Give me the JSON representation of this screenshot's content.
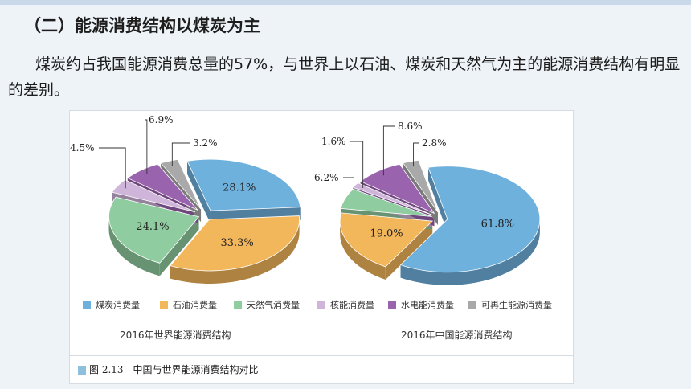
{
  "heading": "（二）能源消费结构以煤炭为主",
  "paragraph": "煤炭约占我国能源消费总量的57%，与世界上以石油、煤炭和天然气为主的能源消费结构有明显的差别。",
  "figure_caption": "图 2.13　中国与世界能源消费结构对比",
  "legend": [
    {
      "label": "煤炭消费量",
      "color": "#6fb1dd"
    },
    {
      "label": "石油消费量",
      "color": "#f2b65b"
    },
    {
      "label": "天然气消费量",
      "color": "#8fcc9f"
    },
    {
      "label": "核能消费量",
      "color": "#cfb5d9"
    },
    {
      "label": "水电能消费量",
      "color": "#9a63ae"
    },
    {
      "label": "可再生能源消费量",
      "color": "#a9a9a9"
    }
  ],
  "chart_data": [
    {
      "type": "pie",
      "title": "2016年世界能源消费结构",
      "categories": [
        "煤炭消费量",
        "石油消费量",
        "天然气消费量",
        "核能消费量",
        "水电能消费量",
        "可再生能源消费量"
      ],
      "values": [
        28.1,
        33.3,
        24.1,
        4.5,
        6.9,
        3.2
      ],
      "value_labels": [
        "28.1%",
        "33.3%",
        "24.1%",
        "4.5%",
        "6.9%",
        "3.2%"
      ],
      "exploded": true,
      "legend_position": "bottom"
    },
    {
      "type": "pie",
      "title": "2016年中国能源消费结构",
      "categories": [
        "煤炭消费量",
        "石油消费量",
        "天然气消费量",
        "核能消费量",
        "水电能消费量",
        "可再生能源消费量"
      ],
      "values": [
        61.8,
        19.0,
        6.2,
        1.6,
        8.6,
        2.8
      ],
      "value_labels": [
        "61.8%",
        "19.0%",
        "6.2%",
        "1.6%",
        "8.6%",
        "2.8%"
      ],
      "exploded": true,
      "legend_position": "bottom"
    }
  ]
}
